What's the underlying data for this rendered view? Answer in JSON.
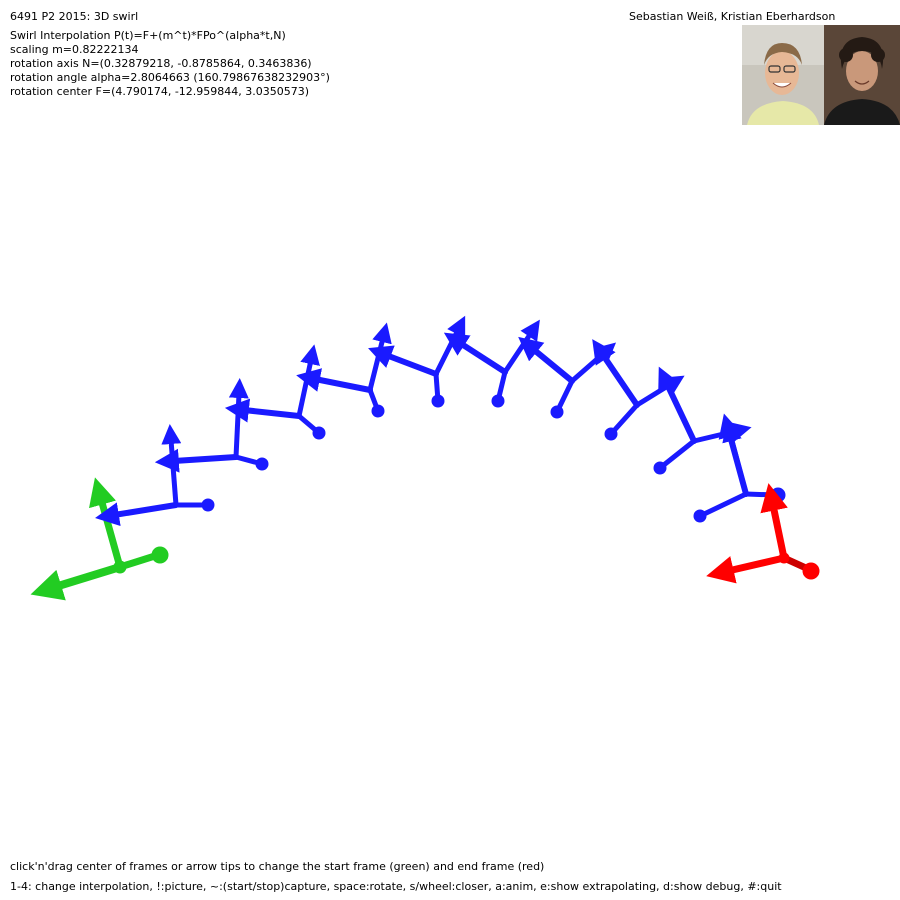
{
  "header": {
    "title": "6491 P2 2015: 3D swirl",
    "authors": "Sebastian Weiß, Kristian Eberhardson"
  },
  "info": {
    "lines": [
      "Swirl Interpolation P(t)=F+(m^t)*FPo^(alpha*t,N)",
      "scaling m=0.82222134",
      "rotation axis N=(0.32879218, -0.8785864, 0.3463836)",
      "rotation angle alpha=2.8064663 (160.79867638232903°)",
      "rotation center F=(4.790174, -12.959844, 3.0350573)"
    ]
  },
  "help": {
    "line1": "click'n'drag center of frames or arrow tips to change the start frame (green) and end frame (red)",
    "line2": "1-4: change interpolation, !:picture, ~:(start/stop)capture, space:rotate, s/wheel:closer, a:anim, e:show extrapolating, d:show debug, #:quit"
  },
  "colors": {
    "start_frame": "#22cc22",
    "end_frame": "#ff0000",
    "intermediate_frame": "#1a1aff",
    "background": "#ffffff"
  },
  "scene": {
    "start_frame_label": "start frame (green)",
    "end_frame_label": "end frame (red)"
  }
}
